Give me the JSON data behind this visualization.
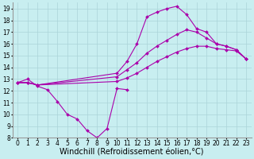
{
  "background_color": "#c8eef0",
  "grid_color": "#aad4d8",
  "line_color": "#aa00aa",
  "marker": "D",
  "markersize": 2.0,
  "linewidth": 0.8,
  "xlim": [
    -0.5,
    23.5
  ],
  "ylim": [
    8,
    19.5
  ],
  "yticks": [
    8,
    9,
    10,
    11,
    12,
    13,
    14,
    15,
    16,
    17,
    18,
    19
  ],
  "xticks": [
    0,
    1,
    2,
    3,
    4,
    5,
    6,
    7,
    8,
    9,
    10,
    11,
    12,
    13,
    14,
    15,
    16,
    17,
    18,
    19,
    20,
    21,
    22,
    23
  ],
  "xlabel": "Windchill (Refroidissement éolien,°C)",
  "xlabel_fontsize": 7.0,
  "tick_fontsize": 5.5,
  "series": [
    {
      "x": [
        0,
        1,
        2,
        3,
        4,
        5,
        6,
        7,
        8,
        9,
        10,
        11
      ],
      "y": [
        12.7,
        13.0,
        12.4,
        12.1,
        11.1,
        10.0,
        9.6,
        8.6,
        8.0,
        8.8,
        12.2,
        12.1
      ]
    },
    {
      "x": [
        0,
        1,
        2,
        10,
        11,
        12,
        13,
        14,
        15,
        16,
        17,
        18,
        19,
        20,
        21,
        22,
        23
      ],
      "y": [
        12.7,
        12.7,
        12.5,
        12.8,
        13.1,
        13.5,
        14.0,
        14.5,
        14.9,
        15.3,
        15.6,
        15.8,
        15.8,
        15.6,
        15.5,
        15.4,
        14.7
      ]
    },
    {
      "x": [
        0,
        1,
        2,
        10,
        11,
        12,
        13,
        14,
        15,
        16,
        17,
        18,
        19,
        20,
        21,
        22,
        23
      ],
      "y": [
        12.7,
        12.7,
        12.5,
        13.2,
        13.8,
        14.4,
        15.2,
        15.8,
        16.3,
        16.8,
        17.2,
        17.0,
        16.5,
        16.0,
        15.8,
        15.5,
        14.7
      ]
    },
    {
      "x": [
        0,
        1,
        2,
        10,
        11,
        12,
        13,
        14,
        15,
        16,
        17,
        18,
        19,
        20,
        21,
        22,
        23
      ],
      "y": [
        12.7,
        12.7,
        12.5,
        13.5,
        14.5,
        16.0,
        18.3,
        18.7,
        19.0,
        19.2,
        18.5,
        17.3,
        17.0,
        16.0,
        15.8,
        15.5,
        14.7
      ]
    }
  ]
}
